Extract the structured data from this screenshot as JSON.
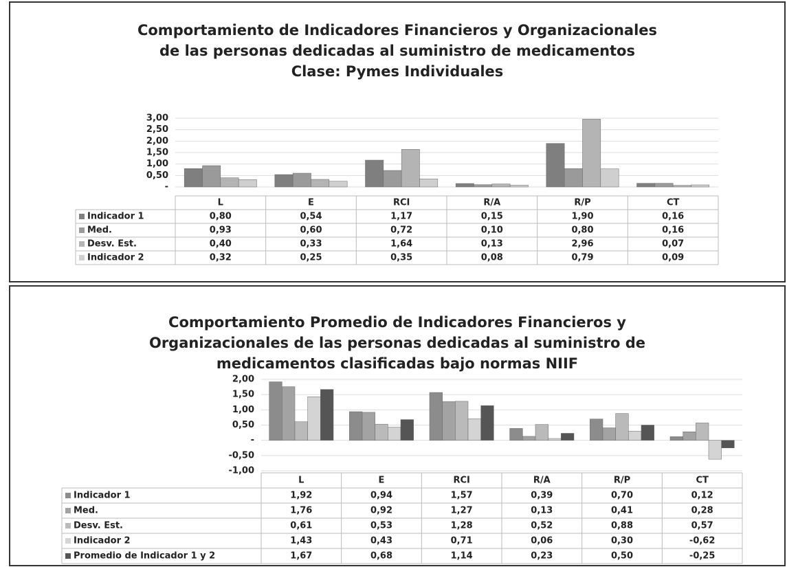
{
  "chart_data": [
    {
      "type": "bar",
      "title": [
        "Comportamiento de Indicadores Financieros y Organizacionales",
        "de las personas dedicadas al suministro de medicamentos",
        "Clase: Pymes Individuales"
      ],
      "categories": [
        "L",
        "E",
        "RCI",
        "R/A",
        "R/P",
        "CT"
      ],
      "series": [
        {
          "name": "Indicador 1",
          "color": "#7f7f7f",
          "values": [
            0.8,
            0.54,
            1.17,
            0.15,
            1.9,
            0.16
          ],
          "value_labels": [
            "0,80",
            "0,54",
            "1,17",
            "0,15",
            "1,90",
            "0,16"
          ]
        },
        {
          "name": "Med.",
          "color": "#9a9a9a",
          "values": [
            0.93,
            0.6,
            0.72,
            0.1,
            0.8,
            0.16
          ],
          "value_labels": [
            "0,93",
            "0,60",
            "0,72",
            "0,10",
            "0,80",
            "0,16"
          ]
        },
        {
          "name": "Desv. Est.",
          "color": "#b4b4b4",
          "values": [
            0.4,
            0.33,
            1.64,
            0.13,
            2.96,
            0.07
          ],
          "value_labels": [
            "0,40",
            "0,33",
            "1,64",
            "0,13",
            "2,96",
            "0,07"
          ]
        },
        {
          "name": "Indicador 2",
          "color": "#cfcfcf",
          "values": [
            0.32,
            0.25,
            0.35,
            0.08,
            0.79,
            0.09
          ],
          "value_labels": [
            "0,32",
            "0,25",
            "0,35",
            "0,08",
            "0,79",
            "0,09"
          ]
        }
      ],
      "ylim": [
        0,
        3
      ],
      "yticks": [
        {
          "value": 0,
          "label": "-"
        },
        {
          "value": 0.5,
          "label": "0,50"
        },
        {
          "value": 1,
          "label": "1,00"
        },
        {
          "value": 1.5,
          "label": "1,50"
        },
        {
          "value": 2,
          "label": "2,00"
        },
        {
          "value": 2.5,
          "label": "2,50"
        },
        {
          "value": 3,
          "label": "3,00"
        }
      ],
      "grid": true
    },
    {
      "type": "bar",
      "title": [
        "Comportamiento Promedio de Indicadores Financieros y",
        "Organizacionales  de las personas dedicadas al suministro de",
        "medicamentos clasificadas bajo normas NIIF"
      ],
      "categories": [
        "L",
        "E",
        "RCI",
        "R/A",
        "R/P",
        "CT"
      ],
      "series": [
        {
          "name": "Indicador 1",
          "color": "#8c8c8c",
          "values": [
            1.92,
            0.94,
            1.57,
            0.39,
            0.7,
            0.12
          ],
          "value_labels": [
            "1,92",
            "0,94",
            "1,57",
            "0,39",
            "0,70",
            "0,12"
          ]
        },
        {
          "name": "Med.",
          "color": "#a3a3a3",
          "values": [
            1.76,
            0.92,
            1.27,
            0.13,
            0.41,
            0.28
          ],
          "value_labels": [
            "1,76",
            "0,92",
            "1,27",
            "0,13",
            "0,41",
            "0,28"
          ]
        },
        {
          "name": "Desv. Est.",
          "color": "#bababa",
          "values": [
            0.61,
            0.53,
            1.28,
            0.52,
            0.88,
            0.57
          ],
          "value_labels": [
            "0,61",
            "0,53",
            "1,28",
            "0,52",
            "0,88",
            "0,57"
          ]
        },
        {
          "name": "Indicador 2",
          "color": "#d4d4d4",
          "values": [
            1.43,
            0.43,
            0.71,
            0.06,
            0.3,
            -0.62
          ],
          "value_labels": [
            "1,43",
            "0,43",
            "0,71",
            "0,06",
            "0,30",
            "-0,62"
          ]
        },
        {
          "name": "Promedio de Indicador 1 y 2",
          "color": "#555555",
          "values": [
            1.67,
            0.68,
            1.14,
            0.23,
            0.5,
            -0.25
          ],
          "value_labels": [
            "1,67",
            "0,68",
            "1,14",
            "0,23",
            "0,50",
            "-0,25"
          ]
        }
      ],
      "ylim": [
        -1,
        2
      ],
      "yticks": [
        {
          "value": -1,
          "label": "-1,00"
        },
        {
          "value": -0.5,
          "label": "-0,50"
        },
        {
          "value": 0,
          "label": "-"
        },
        {
          "value": 0.5,
          "label": "0,50"
        },
        {
          "value": 1,
          "label": "1,00"
        },
        {
          "value": 1.5,
          "label": "1,50"
        },
        {
          "value": 2,
          "label": "2,00"
        }
      ],
      "grid": true
    }
  ]
}
